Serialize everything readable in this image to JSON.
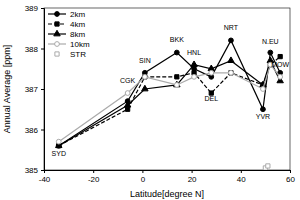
{
  "chart_data": {
    "type": "line",
    "x_label": "Latitude[degree N]",
    "y_label": "Annual Average [ppm]",
    "x": [
      -34,
      -6,
      1,
      14,
      21,
      28,
      36,
      49,
      52,
      56
    ],
    "series": [
      {
        "name": "2km",
        "color": "#000000",
        "marker": "circle",
        "line_style": "solid",
        "values": [
          385.6,
          386.7,
          387.4,
          387.9,
          387.5,
          387.3,
          388.2,
          386.5,
          387.9,
          387.4
        ]
      },
      {
        "name": "4km",
        "color": "#000000",
        "marker": "square",
        "line_style": "dashed",
        "values": [
          385.6,
          386.5,
          387.3,
          387.3,
          387.4,
          386.9,
          387.4,
          387.1,
          387.6,
          387.8
        ]
      },
      {
        "name": "8km",
        "color": "#000000",
        "marker": "triangle",
        "line_style": "solid",
        "values": [
          385.6,
          386.6,
          387.0,
          387.1,
          387.6,
          387.5,
          387.7,
          387.1,
          387.7,
          387.2
        ]
      },
      {
        "name": "10km",
        "color": "#aaaaaa",
        "marker": "circle-open",
        "line_style": "solid",
        "values": [
          385.7,
          386.9,
          387.3,
          387.1,
          387.3,
          387.4,
          387.4,
          387.0,
          387.6,
          387.3
        ]
      },
      {
        "name": "STR",
        "color": "#aaaaaa",
        "marker": "square-open",
        "line_style": "none",
        "x": [
          50,
          51
        ],
        "values": [
          385.05,
          385.1
        ]
      }
    ],
    "annotations": [
      {
        "text": "SYD",
        "x": -34,
        "y": 385.35
      },
      {
        "text": "CGK",
        "x": -6,
        "y": 387.15
      },
      {
        "text": "SIN",
        "x": 1,
        "y": 387.65
      },
      {
        "text": "BKK",
        "x": 14,
        "y": 388.15
      },
      {
        "text": "HNL",
        "x": 21,
        "y": 387.85
      },
      {
        "text": "DEL",
        "x": 28,
        "y": 386.7
      },
      {
        "text": "NRT",
        "x": 36,
        "y": 388.45
      },
      {
        "text": "YVR",
        "x": 49,
        "y": 386.25
      },
      {
        "text": "N.EU",
        "x": 52,
        "y": 388.1
      },
      {
        "text": "MOW",
        "x": 56,
        "y": 387.55
      }
    ],
    "xlim": [
      -40,
      60
    ],
    "xticks": [
      -40,
      -20,
      0,
      20,
      40,
      60
    ],
    "ylim": [
      385,
      389
    ],
    "yticks": [
      385,
      386,
      387,
      388,
      389
    ],
    "legend": "upper-left",
    "grid": false
  }
}
